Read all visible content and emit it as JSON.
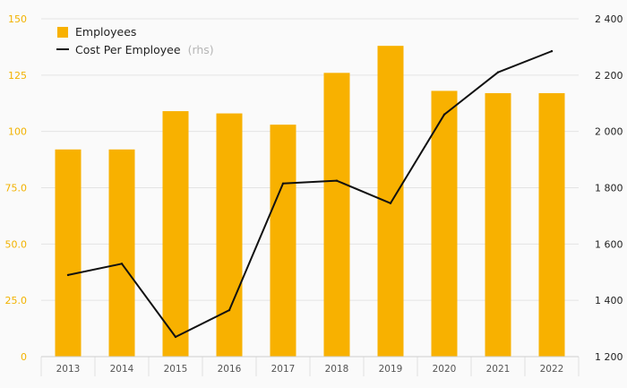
{
  "chart_data": {
    "type": "bar",
    "categories": [
      "2013",
      "2014",
      "2015",
      "2016",
      "2017",
      "2018",
      "2019",
      "2020",
      "2021",
      "2022"
    ],
    "series": [
      {
        "name": "Employees",
        "type": "bar",
        "axis": "left",
        "color": "#f8b100",
        "values": [
          92,
          92,
          109,
          108,
          103,
          126,
          138,
          118,
          117,
          117
        ]
      },
      {
        "name": "Cost Per Employee",
        "legend_note": "(rhs)",
        "type": "line",
        "axis": "right",
        "color": "#111111",
        "values": [
          1490,
          1530,
          1270,
          1365,
          1815,
          1825,
          1745,
          2060,
          2210,
          2285
        ]
      }
    ],
    "y_left": {
      "ylim": [
        0,
        150
      ],
      "ticks": [
        0,
        25,
        50,
        75,
        100,
        125,
        150
      ],
      "tick_labels": [
        "0",
        "25.0",
        "50.0",
        "75.0",
        "100",
        "125",
        "150"
      ],
      "color": "#f2b200"
    },
    "y_right": {
      "ylim": [
        1200,
        2400
      ],
      "ticks": [
        1200,
        1400,
        1600,
        1800,
        2000,
        2200,
        2400
      ],
      "tick_labels": [
        "1 200",
        "1 400",
        "1 600",
        "1 800",
        "2 000",
        "2 200",
        "2 400"
      ]
    },
    "grid": true,
    "legend": "top-left"
  }
}
